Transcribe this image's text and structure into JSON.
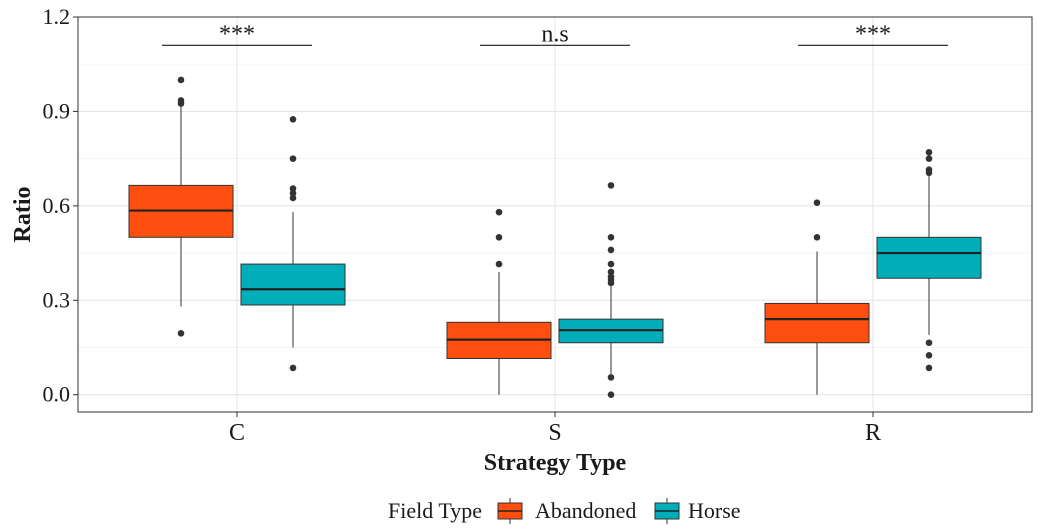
{
  "chart_data": {
    "type": "box",
    "xlabel": "Strategy Type",
    "ylabel": "Ratio",
    "categories": [
      "C",
      "S",
      "R"
    ],
    "ylim": [
      -0.055,
      1.2
    ],
    "yticks": [
      "0.0",
      "0.3",
      "0.6",
      "0.9",
      "1.2"
    ],
    "grid": true,
    "legend": {
      "title": "Field Type",
      "position": "bottom",
      "entries": [
        {
          "name": "Abandoned",
          "color": "#FF4E0D"
        },
        {
          "name": "Horse",
          "color": "#00AEBA"
        }
      ]
    },
    "series": [
      {
        "name": "Abandoned",
        "color": "#FF4E0D",
        "boxes": [
          {
            "category": "C",
            "whisker_low": 0.28,
            "q1": 0.5,
            "median": 0.585,
            "q3": 0.665,
            "whisker_high": 0.915,
            "outliers": [
              1.0,
              0.935,
              0.925,
              0.195
            ]
          },
          {
            "category": "S",
            "whisker_low": 0.0,
            "q1": 0.115,
            "median": 0.175,
            "q3": 0.23,
            "whisker_high": 0.39,
            "outliers": [
              0.58,
              0.5,
              0.415
            ]
          },
          {
            "category": "R",
            "whisker_low": 0.0,
            "q1": 0.165,
            "median": 0.24,
            "q3": 0.29,
            "whisker_high": 0.455,
            "outliers": [
              0.61,
              0.5
            ]
          }
        ]
      },
      {
        "name": "Horse",
        "color": "#00AEBA",
        "boxes": [
          {
            "category": "C",
            "whisker_low": 0.15,
            "q1": 0.285,
            "median": 0.335,
            "q3": 0.415,
            "whisker_high": 0.58,
            "outliers": [
              0.875,
              0.75,
              0.655,
              0.64,
              0.625,
              0.085
            ]
          },
          {
            "category": "S",
            "whisker_low": 0.065,
            "q1": 0.165,
            "median": 0.205,
            "q3": 0.24,
            "whisker_high": 0.345,
            "outliers": [
              0.665,
              0.5,
              0.46,
              0.415,
              0.39,
              0.375,
              0.365,
              0.355,
              0.055,
              0.0
            ]
          },
          {
            "category": "R",
            "whisker_low": 0.19,
            "q1": 0.37,
            "median": 0.45,
            "q3": 0.5,
            "whisker_high": 0.7,
            "outliers": [
              0.77,
              0.75,
              0.715,
              0.705,
              0.165,
              0.125,
              0.085
            ]
          }
        ]
      }
    ],
    "annotations": [
      {
        "category": "C",
        "text": "***",
        "y": 1.11
      },
      {
        "category": "S",
        "text": "n.s",
        "y": 1.11
      },
      {
        "category": "R",
        "text": "***",
        "y": 1.11
      }
    ]
  }
}
